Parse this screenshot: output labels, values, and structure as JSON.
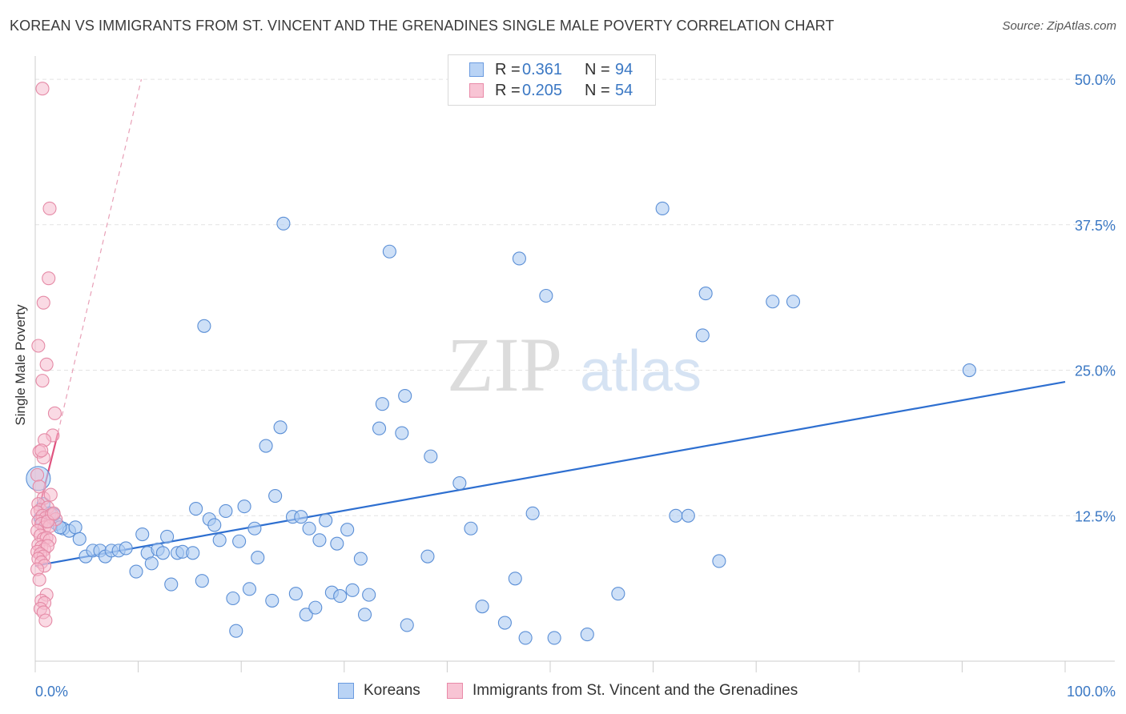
{
  "title": "KOREAN VS IMMIGRANTS FROM ST. VINCENT AND THE GRENADINES SINGLE MALE POVERTY CORRELATION CHART",
  "source": "Source: ZipAtlas.com",
  "watermark": {
    "zip": "ZIP",
    "atlas": "atlas"
  },
  "legend": {
    "r_label": "R =",
    "n_label": "N =",
    "rows": [
      {
        "r": "0.361",
        "n": "94",
        "fill": "#b9d3f5",
        "stroke": "#6a9be0"
      },
      {
        "r": "0.205",
        "n": "54",
        "fill": "#f8c4d4",
        "stroke": "#e98aa8"
      }
    ]
  },
  "bottom_legend": [
    {
      "label": "Koreans"
    },
    {
      "label": "Immigrants from St. Vincent and the Grenadines"
    }
  ],
  "colors": {
    "blue_fill": "#aeccf2",
    "blue_stroke": "#5b8fd6",
    "blue_line": "#2e6fd0",
    "pink_fill": "#f6bccd",
    "pink_stroke": "#e58aa6",
    "pink_line": "#e0537f",
    "grid": "#e3e3e3",
    "tick_label": "#3b78c4"
  },
  "chart_data": {
    "type": "scatter",
    "title": "KOREAN VS IMMIGRANTS FROM ST. VINCENT AND THE GRENADINES SINGLE MALE POVERTY CORRELATION CHART",
    "xlabel": "",
    "ylabel": "Single Male Poverty",
    "xlim": [
      0,
      100
    ],
    "ylim": [
      0,
      52
    ],
    "x_tick_labels": [
      "0.0%",
      "100.0%"
    ],
    "y_ticks": [
      12.5,
      25.0,
      37.5,
      50.0
    ],
    "y_tick_labels": [
      "12.5%",
      "25.0%",
      "37.5%",
      "50.0%"
    ],
    "grid": true,
    "legend_position": "top-center",
    "series": [
      {
        "name": "Koreans",
        "r": 0.361,
        "n": 94,
        "trend": {
          "x": [
            0,
            100
          ],
          "y": [
            8.2,
            24.0
          ],
          "style": "solid"
        },
        "points": [
          [
            0.3,
            15.7
          ],
          [
            0.8,
            13.5
          ],
          [
            1.4,
            12.7
          ],
          [
            2.1,
            11.8
          ],
          [
            2.7,
            11.4
          ],
          [
            3.3,
            11.2
          ],
          [
            3.9,
            11.5
          ],
          [
            4.3,
            10.5
          ],
          [
            4.9,
            9.0
          ],
          [
            5.6,
            9.5
          ],
          [
            6.3,
            9.5
          ],
          [
            6.8,
            9.0
          ],
          [
            7.4,
            9.5
          ],
          [
            8.1,
            9.5
          ],
          [
            8.8,
            9.7
          ],
          [
            9.8,
            7.7
          ],
          [
            10.4,
            10.9
          ],
          [
            10.9,
            9.3
          ],
          [
            11.3,
            8.4
          ],
          [
            11.9,
            9.6
          ],
          [
            12.4,
            9.3
          ],
          [
            12.8,
            10.7
          ],
          [
            13.2,
            6.6
          ],
          [
            13.8,
            9.3
          ],
          [
            14.3,
            9.4
          ],
          [
            15.3,
            9.3
          ],
          [
            15.6,
            13.1
          ],
          [
            16.2,
            6.9
          ],
          [
            16.4,
            28.8
          ],
          [
            16.9,
            12.2
          ],
          [
            17.4,
            11.7
          ],
          [
            17.9,
            10.4
          ],
          [
            18.5,
            12.9
          ],
          [
            19.2,
            5.4
          ],
          [
            19.5,
            2.6
          ],
          [
            19.8,
            10.3
          ],
          [
            20.3,
            13.3
          ],
          [
            20.8,
            6.2
          ],
          [
            21.3,
            11.4
          ],
          [
            21.6,
            8.9
          ],
          [
            22.4,
            18.5
          ],
          [
            23.0,
            5.2
          ],
          [
            23.3,
            14.2
          ],
          [
            23.8,
            20.1
          ],
          [
            24.1,
            37.6
          ],
          [
            25.0,
            12.4
          ],
          [
            25.3,
            5.8
          ],
          [
            25.8,
            12.4
          ],
          [
            26.3,
            4.0
          ],
          [
            26.6,
            11.4
          ],
          [
            27.2,
            4.6
          ],
          [
            27.6,
            10.4
          ],
          [
            28.2,
            12.1
          ],
          [
            28.8,
            5.9
          ],
          [
            29.3,
            10.1
          ],
          [
            29.6,
            5.6
          ],
          [
            30.3,
            11.3
          ],
          [
            30.8,
            6.1
          ],
          [
            31.6,
            8.8
          ],
          [
            32.0,
            4.0
          ],
          [
            32.4,
            5.7
          ],
          [
            33.4,
            20.0
          ],
          [
            33.7,
            22.1
          ],
          [
            34.4,
            35.2
          ],
          [
            35.6,
            19.6
          ],
          [
            35.9,
            22.8
          ],
          [
            36.1,
            3.1
          ],
          [
            38.1,
            9.0
          ],
          [
            38.4,
            17.6
          ],
          [
            41.2,
            15.3
          ],
          [
            42.3,
            11.4
          ],
          [
            43.4,
            4.7
          ],
          [
            45.6,
            3.3
          ],
          [
            46.6,
            7.1
          ],
          [
            47.0,
            34.6
          ],
          [
            47.6,
            2.0
          ],
          [
            48.3,
            12.7
          ],
          [
            49.6,
            31.4
          ],
          [
            50.4,
            2.0
          ],
          [
            53.6,
            2.3
          ],
          [
            56.6,
            5.8
          ],
          [
            60.9,
            38.9
          ],
          [
            62.2,
            12.5
          ],
          [
            63.4,
            12.5
          ],
          [
            64.8,
            28.0
          ],
          [
            65.1,
            31.6
          ],
          [
            66.4,
            8.6
          ],
          [
            71.6,
            30.9
          ],
          [
            73.6,
            30.9
          ],
          [
            90.7,
            25.0
          ],
          [
            0.5,
            12.3
          ],
          [
            1.1,
            12.0
          ],
          [
            1.8,
            12.6
          ],
          [
            2.4,
            11.5
          ]
        ]
      },
      {
        "name": "Immigrants from St. Vincent and the Grenadines",
        "r": 0.205,
        "n": 54,
        "trend": {
          "x": [
            0,
            2.2
          ],
          "y": [
            11.8,
            19.6
          ],
          "style": "solid",
          "extension": {
            "x": [
              2.2,
              10.3
            ],
            "y": [
              19.6,
              50.0
            ],
            "style": "dashed"
          }
        },
        "points": [
          [
            0.7,
            49.2
          ],
          [
            1.4,
            38.9
          ],
          [
            1.3,
            32.9
          ],
          [
            0.8,
            30.8
          ],
          [
            0.3,
            27.1
          ],
          [
            1.1,
            25.5
          ],
          [
            0.7,
            24.1
          ],
          [
            1.9,
            21.3
          ],
          [
            1.7,
            19.4
          ],
          [
            0.9,
            19.0
          ],
          [
            0.4,
            18.0
          ],
          [
            0.8,
            17.5
          ],
          [
            0.6,
            18.1
          ],
          [
            0.2,
            16.0
          ],
          [
            0.4,
            15.0
          ],
          [
            0.8,
            14.0
          ],
          [
            1.5,
            14.3
          ],
          [
            0.3,
            13.5
          ],
          [
            0.5,
            13.0
          ],
          [
            1.2,
            13.2
          ],
          [
            0.2,
            12.8
          ],
          [
            0.7,
            12.5
          ],
          [
            1.0,
            12.3
          ],
          [
            1.6,
            12.6
          ],
          [
            2.0,
            12.2
          ],
          [
            0.3,
            12.0
          ],
          [
            0.6,
            11.8
          ],
          [
            0.9,
            11.5
          ],
          [
            1.4,
            11.6
          ],
          [
            0.2,
            11.2
          ],
          [
            0.5,
            10.8
          ],
          [
            0.8,
            10.5
          ],
          [
            1.1,
            10.6
          ],
          [
            1.4,
            10.4
          ],
          [
            0.3,
            10.0
          ],
          [
            0.6,
            9.8
          ],
          [
            0.9,
            9.6
          ],
          [
            1.2,
            9.9
          ],
          [
            0.2,
            9.4
          ],
          [
            0.5,
            9.2
          ],
          [
            0.8,
            9.0
          ],
          [
            0.3,
            8.8
          ],
          [
            0.6,
            8.5
          ],
          [
            0.9,
            8.2
          ],
          [
            0.2,
            7.9
          ],
          [
            0.4,
            7.0
          ],
          [
            1.1,
            5.7
          ],
          [
            0.6,
            5.2
          ],
          [
            0.9,
            5.0
          ],
          [
            0.5,
            4.5
          ],
          [
            0.8,
            4.2
          ],
          [
            1.0,
            3.5
          ],
          [
            1.2,
            12.0
          ],
          [
            1.8,
            12.7
          ]
        ]
      }
    ]
  }
}
